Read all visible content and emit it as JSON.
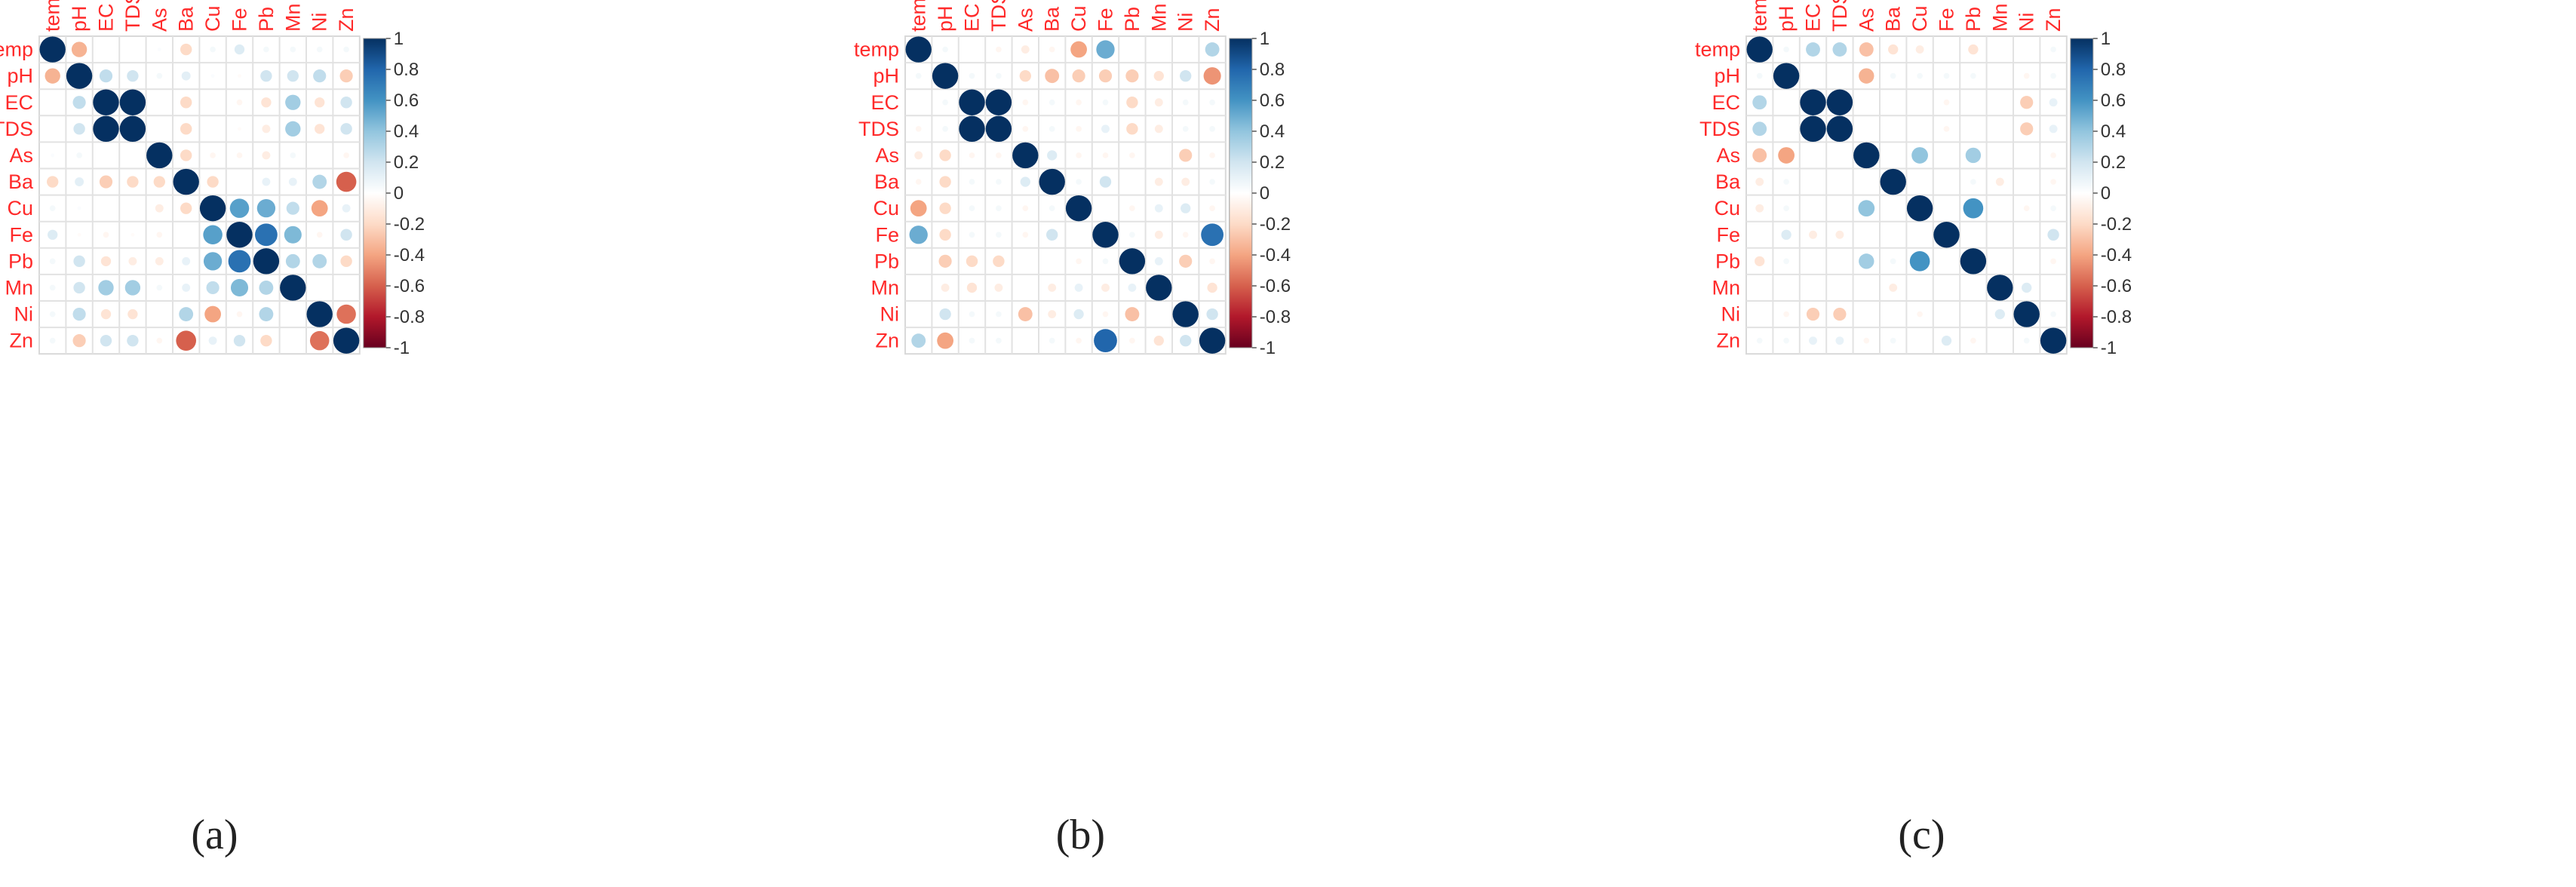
{
  "chart_data": [
    {
      "type": "heatmap",
      "style": "correlogram-circles",
      "caption": "(a)",
      "variables": [
        "temp",
        "pH",
        "EC",
        "TDS",
        "As",
        "Ba",
        "Cu",
        "Fe",
        "Pb",
        "Mn",
        "Ni",
        "Zn"
      ],
      "color_scale": {
        "min": -1,
        "max": 1,
        "low": "#67001f",
        "mid": "#ffffff",
        "high": "#053061"
      },
      "colorbar_ticks": [
        "1",
        "0.8",
        "0.6",
        "0.4",
        "0.2",
        "0",
        "-0.2",
        "-0.4",
        "-0.6",
        "-0.8",
        "-1"
      ],
      "matrix": [
        [
          1,
          -0.35,
          0,
          0,
          0.02,
          -0.2,
          0.05,
          0.15,
          0.05,
          0.05,
          0.05,
          0.05
        ],
        [
          -0.35,
          1,
          0.25,
          0.2,
          0.05,
          0.12,
          0.02,
          -0.02,
          0.2,
          0.2,
          0.25,
          -0.25
        ],
        [
          0,
          0.25,
          1,
          1,
          0,
          -0.2,
          0,
          -0.05,
          -0.15,
          0.35,
          -0.15,
          0.2
        ],
        [
          0,
          0.2,
          1,
          1,
          0,
          -0.2,
          0,
          -0.02,
          -0.1,
          0.35,
          -0.15,
          0.2
        ],
        [
          0.02,
          0.05,
          0,
          0,
          1,
          -0.2,
          -0.05,
          -0.05,
          -0.1,
          0.05,
          0,
          -0.05
        ],
        [
          -0.2,
          0.12,
          -0.25,
          -0.2,
          -0.2,
          1,
          -0.2,
          0,
          0.1,
          0.1,
          0.3,
          -0.6
        ],
        [
          0.05,
          0.02,
          0,
          0,
          -0.1,
          -0.2,
          1,
          0.55,
          0.5,
          0.25,
          -0.4,
          0.1
        ],
        [
          0.15,
          -0.02,
          -0.05,
          -0.02,
          -0.05,
          0,
          0.55,
          1,
          0.75,
          0.45,
          -0.05,
          0.2
        ],
        [
          0.05,
          0.2,
          -0.15,
          -0.1,
          -0.1,
          0.1,
          0.5,
          0.75,
          1,
          0.3,
          0.3,
          -0.2
        ],
        [
          0.05,
          0.2,
          0.35,
          0.35,
          0.05,
          0.1,
          0.25,
          0.45,
          0.3,
          1,
          0,
          0
        ],
        [
          0.05,
          0.25,
          -0.15,
          -0.15,
          0,
          0.3,
          -0.4,
          -0.05,
          0.3,
          0,
          1,
          -0.55
        ],
        [
          0.05,
          -0.25,
          0.2,
          0.2,
          -0.05,
          -0.6,
          0.1,
          0.2,
          -0.2,
          0,
          -0.55,
          1
        ]
      ]
    },
    {
      "type": "heatmap",
      "style": "correlogram-circles",
      "caption": "(b)",
      "variables": [
        "temp",
        "pH",
        "EC",
        "TDS",
        "As",
        "Ba",
        "Cu",
        "Fe",
        "Pb",
        "Mn",
        "Ni",
        "Zn"
      ],
      "color_scale": {
        "min": -1,
        "max": 1,
        "low": "#67001f",
        "mid": "#ffffff",
        "high": "#053061"
      },
      "colorbar_ticks": [
        "1",
        "0.8",
        "0.6",
        "0.4",
        "0.2",
        "0",
        "-0.2",
        "-0.4",
        "-0.6",
        "-0.8",
        "-1"
      ],
      "matrix": [
        [
          1,
          0.05,
          0,
          -0.05,
          -0.1,
          -0.05,
          -0.4,
          0.5,
          0,
          0,
          0,
          0.3
        ],
        [
          0.05,
          1,
          0.05,
          0.05,
          -0.2,
          -0.3,
          -0.25,
          -0.25,
          -0.25,
          -0.15,
          0.2,
          -0.45
        ],
        [
          0,
          0.05,
          1,
          1,
          -0.05,
          0.05,
          -0.05,
          0.05,
          -0.2,
          -0.1,
          0.05,
          0.05
        ],
        [
          -0.05,
          0.05,
          1,
          1,
          -0.05,
          0.05,
          -0.05,
          0.1,
          -0.2,
          -0.1,
          0.05,
          0.05
        ],
        [
          -0.1,
          -0.2,
          -0.05,
          -0.05,
          1,
          0.15,
          -0.05,
          -0.05,
          -0.05,
          0,
          -0.25,
          -0.05
        ],
        [
          -0.05,
          -0.2,
          0.05,
          0.05,
          0.15,
          1,
          0.05,
          0.2,
          0,
          -0.1,
          -0.1,
          0.05
        ],
        [
          -0.4,
          -0.2,
          0.05,
          0.05,
          -0.05,
          0.05,
          1,
          0,
          -0.05,
          0.1,
          0.15,
          -0.05
        ],
        [
          0.5,
          -0.2,
          0.05,
          0.05,
          -0.05,
          0.2,
          0,
          1,
          0.05,
          -0.1,
          -0.05,
          0.75
        ],
        [
          0,
          -0.25,
          -0.2,
          -0.2,
          0,
          0,
          -0.05,
          0.05,
          1,
          0.1,
          -0.25,
          -0.05
        ],
        [
          0,
          -0.1,
          -0.15,
          -0.1,
          0,
          -0.1,
          0.1,
          -0.1,
          0.1,
          1,
          0,
          -0.15
        ],
        [
          0,
          0.2,
          0.05,
          0.05,
          -0.3,
          -0.1,
          0.15,
          -0.05,
          -0.3,
          0,
          1,
          0.2
        ],
        [
          0.3,
          -0.4,
          0.05,
          0.05,
          0,
          0.05,
          -0.05,
          0.8,
          -0.05,
          -0.15,
          0.2,
          1
        ]
      ]
    },
    {
      "type": "heatmap",
      "style": "correlogram-circles",
      "caption": "(c)",
      "variables": [
        "temp",
        "pH",
        "EC",
        "TDS",
        "As",
        "Ba",
        "Cu",
        "Fe",
        "Pb",
        "Mn",
        "Ni",
        "Zn"
      ],
      "color_scale": {
        "min": -1,
        "max": 1,
        "low": "#67001f",
        "mid": "#ffffff",
        "high": "#053061"
      },
      "colorbar_ticks": [
        "1",
        "0.8",
        "0.6",
        "0.4",
        "0.2",
        "0",
        "-0.2",
        "-0.4",
        "-0.6",
        "-0.8",
        "-1"
      ],
      "matrix": [
        [
          1,
          0.05,
          0.3,
          0.3,
          -0.3,
          -0.15,
          -0.1,
          0,
          -0.15,
          0,
          0,
          0.05
        ],
        [
          0.05,
          1,
          0,
          0,
          -0.35,
          0.05,
          0.05,
          0.05,
          0.05,
          0,
          -0.05,
          0.05
        ],
        [
          0.3,
          0,
          1,
          1,
          0,
          0,
          0,
          -0.05,
          0,
          0,
          -0.25,
          0.1
        ],
        [
          0.3,
          0,
          1,
          1,
          0,
          0,
          0,
          -0.05,
          0,
          0,
          -0.25,
          0.1
        ],
        [
          -0.3,
          -0.4,
          0,
          0,
          1,
          0,
          0.4,
          0,
          0.35,
          0,
          0,
          -0.05
        ],
        [
          -0.1,
          0.05,
          0,
          0,
          0,
          1,
          0,
          0,
          0.05,
          -0.1,
          0,
          -0.05
        ],
        [
          -0.1,
          0.05,
          0,
          0,
          0.4,
          0,
          1,
          0,
          0.6,
          0,
          -0.05,
          0.05
        ],
        [
          0,
          0.15,
          -0.1,
          -0.1,
          0,
          0,
          0,
          1,
          0,
          0,
          0,
          0.2
        ],
        [
          -0.15,
          0.05,
          0,
          0,
          0.35,
          0.05,
          0.6,
          0,
          1,
          0,
          0,
          -0.05
        ],
        [
          0,
          0,
          0,
          0,
          0,
          -0.1,
          0,
          0,
          0,
          1,
          0.15,
          0
        ],
        [
          0,
          -0.05,
          -0.25,
          -0.25,
          0,
          0,
          -0.05,
          0,
          0,
          0.15,
          1,
          0.05
        ],
        [
          0.05,
          0.05,
          0.1,
          0.1,
          -0.05,
          0.05,
          0,
          0.15,
          -0.05,
          0,
          0.05,
          1
        ]
      ]
    }
  ]
}
